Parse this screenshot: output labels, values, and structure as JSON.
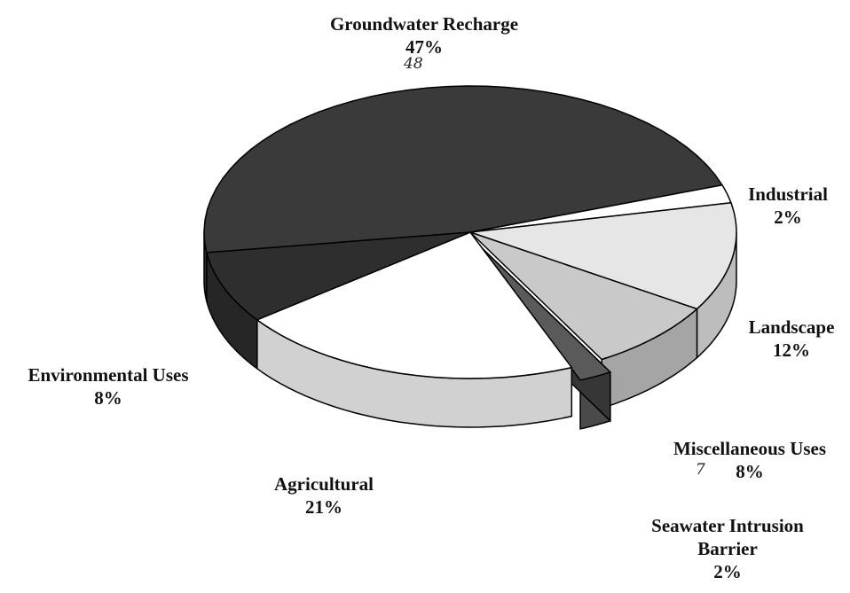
{
  "chart_data": {
    "type": "pie",
    "categories": [
      "Groundwater Recharge",
      "Industrial",
      "Landscape",
      "Miscellaneous Uses",
      "Seawater Intrusion Barrier",
      "Agricultural",
      "Environmental Uses"
    ],
    "values": [
      47,
      2,
      12,
      8,
      2,
      21,
      8
    ],
    "value_labels": [
      "47%",
      "2%",
      "12%",
      "8%",
      "2%",
      "21%",
      "8%"
    ],
    "colors": [
      "#3a3a3a",
      "#ffffff",
      "#e6e6e6",
      "#c9c9c9",
      "#5a5a5a",
      "#ffffff",
      "#2e2e2e"
    ],
    "exploded": "Seawater Intrusion Barrier",
    "annotations": [
      "48",
      "7"
    ]
  }
}
